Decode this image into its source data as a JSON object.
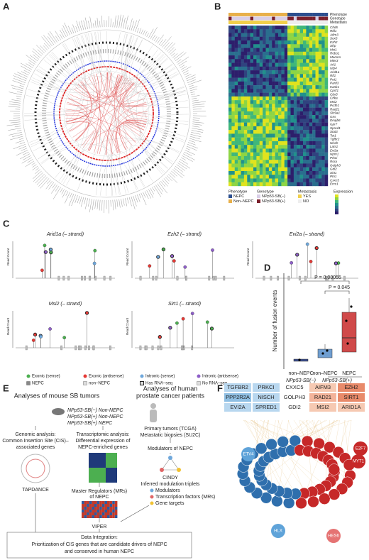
{
  "panels": {
    "a": "A",
    "b": "B",
    "c": "C",
    "d": "D",
    "e": "E",
    "f": "F"
  },
  "panel_b": {
    "annotation_rows": [
      "Phenotype",
      "Genotype",
      "Metastasis"
    ],
    "genes": [
      "Chd6",
      "Rbl1",
      "Aifm3",
      "Sox5",
      "Ezh2",
      "Sfrp",
      "Mxi1",
      "Robo1",
      "Mecom",
      "Mier3",
      "Arl1",
      "Utp4",
      "Arid1a",
      "Rif1",
      "Pet1",
      "Pard3",
      "Kank1",
      "Cpsf1",
      "Cbx5",
      "Chka",
      "Msi2",
      "Pcdh1",
      "Rad21",
      "Slc9a1",
      "Gns",
      "Dnajb6",
      "Gpr7",
      "Spred1",
      "Stat3",
      "Tet1",
      "Tgfbr2",
      "Nisch",
      "Lats1",
      "Evi2a",
      "Npm1",
      "Prkci",
      "Rora",
      "Golph3",
      "Gdi2",
      "Sirt1",
      "Ptn1",
      "Cxxc5",
      "Ercc1"
    ],
    "legend": {
      "phenotype_title": "Phenotype",
      "phenotype": [
        "NEPC",
        "Non–NEPC"
      ],
      "genotype_title": "Genotype",
      "genotype": [
        "NPp53-SB(−)",
        "NPp53-SB(+)"
      ],
      "metastasis_title": "Metastasis",
      "metastasis": [
        "YES",
        "NO"
      ],
      "expression_title": "Expression"
    }
  },
  "panel_c": {
    "tracks": [
      "Arid1a (– strand)",
      "Ezh2 (– strand)",
      "Evi2a (– strand)",
      "Msi2 (– strand)",
      "Sirt1 (– strand)"
    ],
    "y_label": "Read Count",
    "legend": [
      "Exonic (sense)",
      "Exonic (antisense)",
      "Intronic (sense)",
      "Intronic (antisense)",
      "NEPC",
      "non–NEPC",
      "Has RNA–seq",
      "No RNA–seq"
    ]
  },
  "panel_d": {
    "y_label": "Number of fusion events",
    "categories": [
      "non–NEPC",
      "non–NEPC",
      "NEPC"
    ],
    "groups": [
      "NPp53-SB(−)",
      "NPp53-SB(+)"
    ],
    "p_values": [
      "P = 0.00055",
      "P = 0.045"
    ]
  },
  "panel_e": {
    "mouse_title": "Analyses of mouse SB tumors",
    "cohorts": [
      "NPp53-SB(−) Non-NEPC",
      "NPp53-SB(+) Non-NEPC",
      "NPp53-SB(+) NEPC"
    ],
    "genomic": "Genomic analysis:",
    "genomic_sub": [
      "Common Insertion Site (CIS)–",
      "associated genes"
    ],
    "tapdance": "TAPDANCE",
    "transcriptomic": "Transcriptomic analysis:",
    "transcriptomic_sub": [
      "Differential expression of",
      "NEPC-enriched genes"
    ],
    "mrs": [
      "Master Regulators (MRs)",
      "of NEPC"
    ],
    "viper": "VIPER",
    "human_title": [
      "Analyses of human",
      "prostate cancer patients"
    ],
    "human_data": [
      "Primary tumors (TCGA)",
      "Metastatic biopsies (SU2C)"
    ],
    "modulators": "Modulators of NEPC",
    "cindy": "CINDY",
    "triplets": "Inferred modulation triplets",
    "triplet_legend": [
      "Modulators",
      "Transcription factors (MRs)",
      "Gene targets"
    ],
    "integration": [
      "Data Integration:",
      "Prioritization of CIS genes that are candidate drivers of NEPC",
      "and conserved in human NEPC"
    ]
  },
  "panel_f": {
    "genes": [
      [
        "TGFBR2",
        "PRKCI",
        "CXXC5",
        "AIFM3",
        "EZH2"
      ],
      [
        "PPP2R2A",
        "NISCH",
        "GOLPH3",
        "RAD21",
        "SIRT1"
      ],
      [
        "EVI2A",
        "SPRED1",
        "GDI2",
        "MSI2",
        "ARID1A"
      ]
    ],
    "nodes": [
      "HLX",
      "HES6",
      "MYT1",
      "E2F7",
      "ETV4"
    ]
  }
}
